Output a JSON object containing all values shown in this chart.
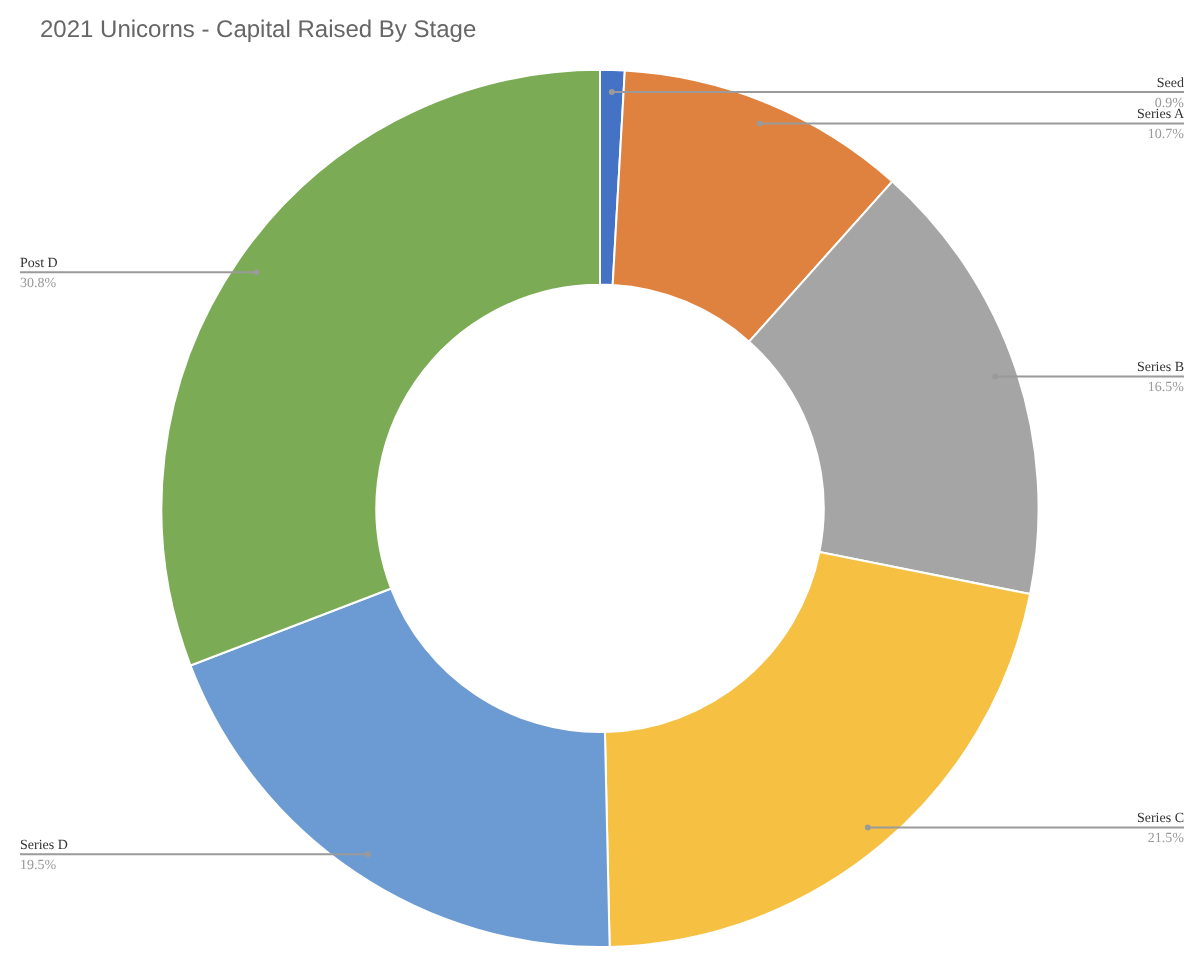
{
  "chart_data": {
    "type": "donut",
    "title": "2021 Unicorns - Capital Raised By Stage",
    "categories": [
      "Seed",
      "Series A",
      "Series B",
      "Series C",
      "Series D",
      "Post D"
    ],
    "values": [
      0.9,
      10.7,
      16.5,
      21.5,
      19.5,
      30.8
    ],
    "value_labels": [
      "0.9%",
      "10.7%",
      "16.5%",
      "21.5%",
      "19.5%",
      "30.8%"
    ],
    "colors": [
      "#4472c4",
      "#e0823f",
      "#a5a5a5",
      "#f6c142",
      "#6b9bd2",
      "#7bac55"
    ],
    "legend": false
  }
}
